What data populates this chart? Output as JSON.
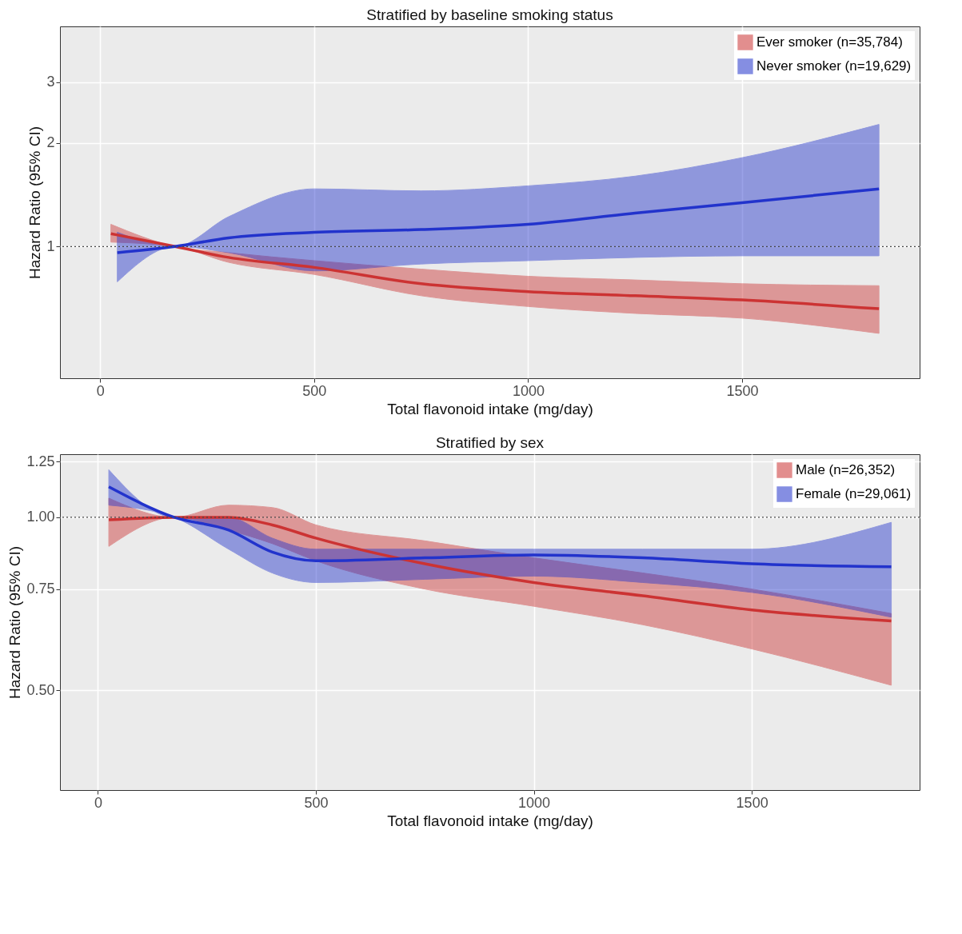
{
  "chart_data": [
    {
      "type": "line",
      "title": "Stratified by baseline smoking status",
      "xlabel": "Total flavonoid intake (mg/day)",
      "ylabel": "Hazard Ratio (95% CI)",
      "log": "y",
      "grid": true,
      "legend": "top right",
      "xlim": [
        -94,
        1915
      ],
      "xticks": [
        0,
        500,
        1000,
        1500
      ],
      "ylim": [
        0.415,
        4.35
      ],
      "yticks": [
        1,
        2,
        3
      ],
      "ref_lines": [
        {
          "axis": "y",
          "value": 1,
          "line_style": "dotted",
          "color": "#444444"
        }
      ],
      "series": [
        {
          "name": "Ever smoker (n=35,784)",
          "color": "#cc3333",
          "x": [
            25,
            175,
            300,
            500,
            750,
            1000,
            1250,
            1500,
            1820
          ],
          "values": [
            1.09,
            1.0,
            0.93,
            0.87,
            0.78,
            0.74,
            0.72,
            0.7,
            0.66
          ],
          "upper": [
            1.16,
            1.0,
            0.96,
            0.91,
            0.86,
            0.82,
            0.8,
            0.78,
            0.77
          ],
          "lower": [
            1.03,
            1.0,
            0.9,
            0.83,
            0.72,
            0.67,
            0.64,
            0.62,
            0.56
          ]
        },
        {
          "name": "Never smoker (n=19,629)",
          "color": "#2233cc",
          "x": [
            40,
            175,
            300,
            500,
            750,
            1000,
            1250,
            1500,
            1820
          ],
          "values": [
            0.96,
            1.0,
            1.06,
            1.1,
            1.12,
            1.16,
            1.25,
            1.34,
            1.47
          ],
          "upper": [
            1.1,
            1.0,
            1.22,
            1.47,
            1.45,
            1.5,
            1.6,
            1.81,
            2.26
          ],
          "lower": [
            0.79,
            1.0,
            0.96,
            0.85,
            0.89,
            0.91,
            0.93,
            0.94,
            0.94
          ]
        }
      ]
    },
    {
      "type": "line",
      "title": "Stratified by sex",
      "xlabel": "Total flavonoid intake (mg/day)",
      "ylabel": "Hazard Ratio (95% CI)",
      "log": "y",
      "grid": true,
      "legend": "top right",
      "xlim": [
        -87,
        1885
      ],
      "xticks": [
        0,
        500,
        1000,
        1500
      ],
      "ylim": [
        0.335,
        1.288
      ],
      "yticks": [
        {
          "value": 0.5,
          "label": "0.50"
        },
        {
          "value": 0.75,
          "label": "0.75"
        },
        {
          "value": 1,
          "label": "1.00"
        },
        {
          "value": 1.25,
          "label": "1.25"
        }
      ],
      "ref_lines": [
        {
          "axis": "y",
          "value": 1,
          "line_style": "dotted",
          "color": "#444444"
        }
      ],
      "series": [
        {
          "name": "Male (n=26,352)",
          "color": "#cc3333",
          "x": [
            25,
            175,
            300,
            400,
            500,
            750,
            1000,
            1250,
            1500,
            1820
          ],
          "values": [
            0.99,
            1.0,
            1.0,
            0.97,
            0.92,
            0.83,
            0.77,
            0.73,
            0.69,
            0.66
          ],
          "upper": [
            1.08,
            1.0,
            1.05,
            1.04,
            0.97,
            0.91,
            0.85,
            0.8,
            0.75,
            0.68
          ],
          "lower": [
            0.89,
            1.0,
            0.95,
            0.9,
            0.84,
            0.75,
            0.7,
            0.65,
            0.59,
            0.51
          ]
        },
        {
          "name": "Female (n=29,061)",
          "color": "#2233cc",
          "x": [
            25,
            175,
            300,
            400,
            500,
            750,
            1000,
            1250,
            1500,
            1820
          ],
          "values": [
            1.13,
            1.0,
            0.95,
            0.87,
            0.84,
            0.85,
            0.86,
            0.85,
            0.83,
            0.82
          ],
          "upper": [
            1.21,
            1.0,
            1.0,
            0.92,
            0.88,
            0.88,
            0.88,
            0.88,
            0.88,
            0.98
          ],
          "lower": [
            1.05,
            1.0,
            0.88,
            0.8,
            0.77,
            0.78,
            0.79,
            0.77,
            0.74,
            0.67
          ]
        }
      ]
    }
  ]
}
